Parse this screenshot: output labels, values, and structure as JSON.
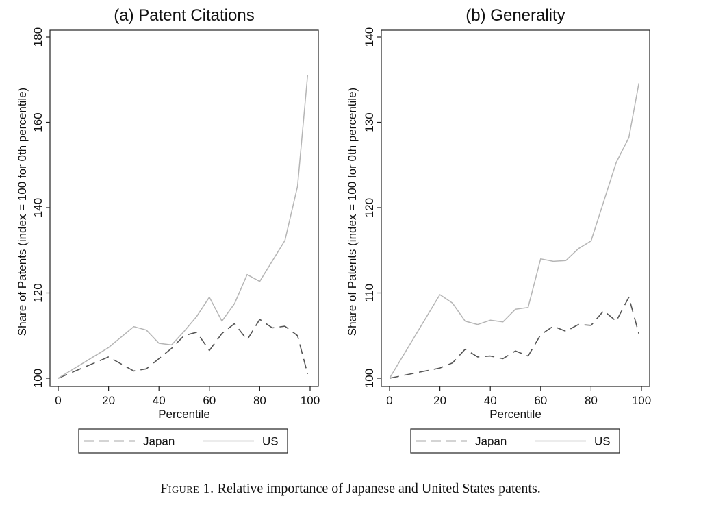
{
  "caption": {
    "label": "Figure 1.",
    "text": "Relative importance of Japanese and United States patents."
  },
  "chart_data": [
    {
      "type": "line",
      "title": "(a) Patent Citations",
      "xlabel": "Percentile",
      "ylabel": "Share of Patents (index = 100 for 0th percentile)",
      "xlim": [
        0,
        100
      ],
      "ylim": [
        100,
        180
      ],
      "xticks": [
        0,
        20,
        40,
        60,
        80,
        100
      ],
      "yticks": [
        100,
        120,
        140,
        160,
        180
      ],
      "legend": [
        "Japan",
        "US"
      ],
      "series": [
        {
          "name": "Japan",
          "style": "dashed",
          "color": "#555555",
          "points": [
            [
              0,
              100
            ],
            [
              20,
              105
            ],
            [
              30,
              101.7
            ],
            [
              35,
              102.2
            ],
            [
              45,
              107
            ],
            [
              50,
              110
            ],
            [
              55,
              110.8
            ],
            [
              60,
              106.5
            ],
            [
              65,
              110.5
            ],
            [
              70,
              112.8
            ],
            [
              75,
              109
            ],
            [
              80,
              113.8
            ],
            [
              85,
              111.8
            ],
            [
              90,
              112.2
            ],
            [
              95,
              110
            ],
            [
              99,
              101
            ]
          ]
        },
        {
          "name": "US",
          "style": "solid",
          "color": "#b5b5b5",
          "points": [
            [
              0,
              100
            ],
            [
              20,
              107.2
            ],
            [
              30,
              112.1
            ],
            [
              35,
              111.3
            ],
            [
              40,
              108.2
            ],
            [
              45,
              107.8
            ],
            [
              50,
              111
            ],
            [
              55,
              114.5
            ],
            [
              60,
              119
            ],
            [
              65,
              113.4
            ],
            [
              70,
              117.5
            ],
            [
              75,
              124.3
            ],
            [
              80,
              122.7
            ],
            [
              85,
              127.5
            ],
            [
              90,
              132.3
            ],
            [
              95,
              145
            ],
            [
              99,
              171
            ]
          ]
        }
      ]
    },
    {
      "type": "line",
      "title": "(b) Generality",
      "xlabel": "Percentile",
      "ylabel": "Share of Patents (index = 100 for 0th percentile)",
      "xlim": [
        0,
        100
      ],
      "ylim": [
        100,
        140
      ],
      "xticks": [
        0,
        20,
        40,
        60,
        80,
        100
      ],
      "yticks": [
        100,
        110,
        120,
        130,
        140
      ],
      "legend": [
        "Japan",
        "US"
      ],
      "series": [
        {
          "name": "Japan",
          "style": "dashed",
          "color": "#555555",
          "points": [
            [
              0,
              100
            ],
            [
              20,
              101.2
            ],
            [
              25,
              101.8
            ],
            [
              30,
              103.4
            ],
            [
              35,
              102.5
            ],
            [
              40,
              102.6
            ],
            [
              45,
              102.3
            ],
            [
              50,
              103.2
            ],
            [
              55,
              102.6
            ],
            [
              60,
              105.1
            ],
            [
              65,
              106.1
            ],
            [
              70,
              105.5
            ],
            [
              75,
              106.3
            ],
            [
              80,
              106.2
            ],
            [
              85,
              107.9
            ],
            [
              90,
              106.7
            ],
            [
              95,
              109.5
            ],
            [
              99,
              105.2
            ]
          ]
        },
        {
          "name": "US",
          "style": "solid",
          "color": "#b5b5b5",
          "points": [
            [
              0,
              100
            ],
            [
              20,
              109.8
            ],
            [
              25,
              108.8
            ],
            [
              30,
              106.7
            ],
            [
              35,
              106.3
            ],
            [
              40,
              106.8
            ],
            [
              45,
              106.6
            ],
            [
              50,
              108.1
            ],
            [
              55,
              108.3
            ],
            [
              60,
              114
            ],
            [
              65,
              113.7
            ],
            [
              70,
              113.8
            ],
            [
              75,
              115.2
            ],
            [
              80,
              116.1
            ],
            [
              85,
              120.7
            ],
            [
              90,
              125.3
            ],
            [
              95,
              128.2
            ],
            [
              99,
              134.6
            ]
          ]
        }
      ]
    }
  ]
}
